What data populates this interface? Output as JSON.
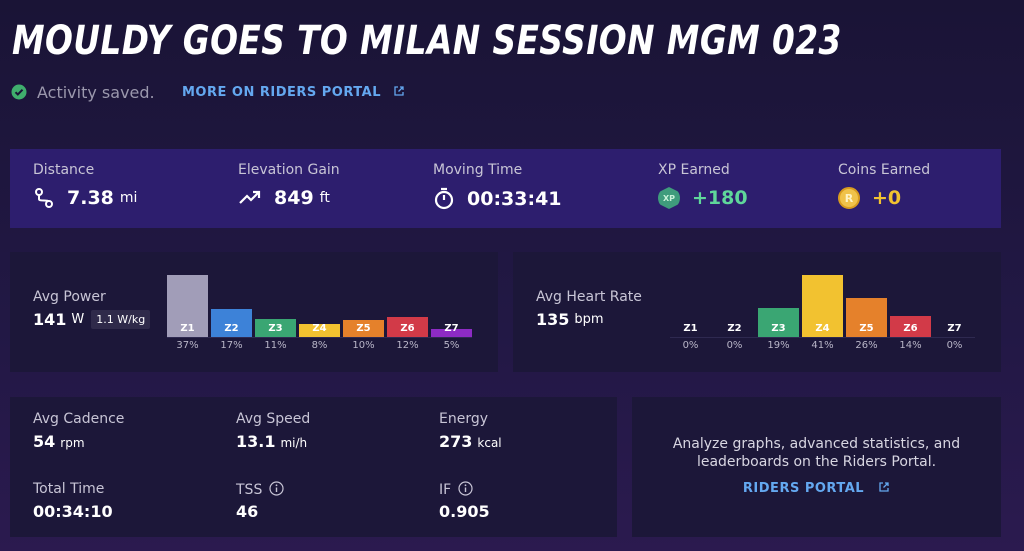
{
  "header": {
    "title": "MOULDY GOES TO MILAN SESSION MGM 023",
    "status": "Activity saved.",
    "link": "MORE ON RIDERS PORTAL"
  },
  "summary": [
    {
      "label": "Distance",
      "value": "7.38",
      "unit": "mi"
    },
    {
      "label": "Elevation Gain",
      "value": "849",
      "unit": "ft"
    },
    {
      "label": "Moving Time",
      "value": "00:33:41"
    },
    {
      "label": "XP Earned",
      "value": "+180",
      "badge": "XP"
    },
    {
      "label": "Coins Earned",
      "value": "+0",
      "badge": "R"
    }
  ],
  "power": {
    "label": "Avg Power",
    "value": "141",
    "unit": "W",
    "per_kg": "1.1 W/kg",
    "zones": {
      "names": [
        "Z1",
        "Z2",
        "Z3",
        "Z4",
        "Z5",
        "Z6",
        "Z7"
      ],
      "values": [
        37,
        17,
        11,
        8,
        10,
        12,
        5
      ],
      "value_labels": [
        "37%",
        "17%",
        "11%",
        "8%",
        "10%",
        "12%",
        "5%"
      ],
      "colors": [
        "#a19db8",
        "#3d82d8",
        "#3aa673",
        "#f2c230",
        "#e5812b",
        "#d23a48",
        "#8d2bc4"
      ]
    }
  },
  "heart_rate": {
    "label": "Avg Heart Rate",
    "value": "135",
    "unit": "bpm",
    "zones": {
      "names": [
        "Z1",
        "Z2",
        "Z3",
        "Z4",
        "Z5",
        "Z6",
        "Z7"
      ],
      "values": [
        0,
        0,
        19,
        41,
        26,
        14,
        0
      ],
      "value_labels": [
        "0%",
        "0%",
        "19%",
        "41%",
        "26%",
        "14%",
        "0%"
      ],
      "colors": [
        "#a19db8",
        "#3d82d8",
        "#3aa673",
        "#f2c230",
        "#e5812b",
        "#d23a48",
        "#8d2bc4"
      ]
    }
  },
  "details": [
    {
      "label": "Avg Cadence",
      "value": "54",
      "unit": "rpm"
    },
    {
      "label": "Avg Speed",
      "value": "13.1",
      "unit": "mi/h"
    },
    {
      "label": "Energy",
      "value": "273",
      "unit": "kcal"
    },
    {
      "label": "Total Time",
      "value": "00:34:10"
    },
    {
      "label": "TSS",
      "value": "46"
    },
    {
      "label": "IF",
      "value": "0.905"
    }
  ],
  "portal": {
    "text": "Analyze graphs, advanced statistics, and leaderboards on the Riders Portal.",
    "link": "RIDERS PORTAL"
  }
}
